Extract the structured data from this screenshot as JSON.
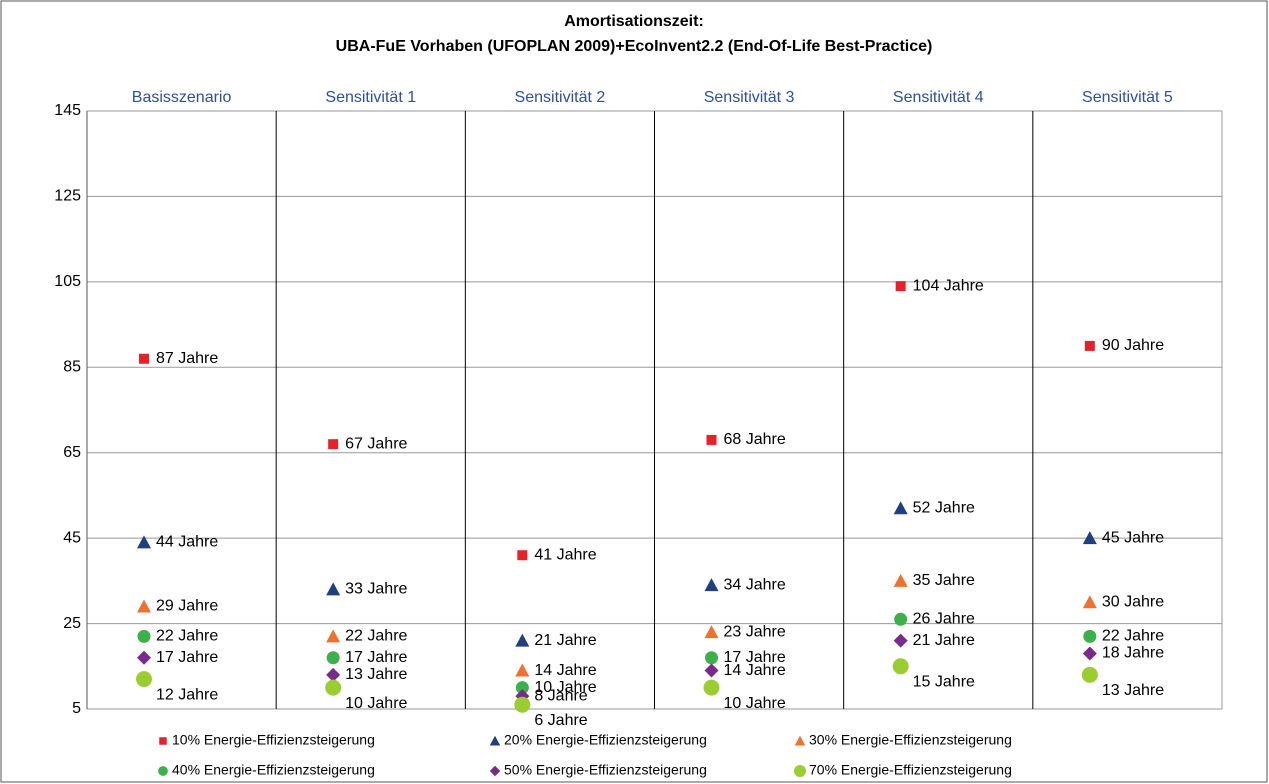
{
  "chart_data": {
    "type": "scatter",
    "title": "Amortisationszeit:",
    "subtitle": "UBA-FuE Vorhaben (UFOPLAN 2009)+EcoInvent2.2 (End-Of-Life Best-Practice)",
    "categories": [
      "Basisszenario",
      "Sensitivität 1",
      "Sensitivität 2",
      "Sensitivität 3",
      "Sensitivität 4",
      "Sensitivität 5"
    ],
    "ylim": [
      5,
      145
    ],
    "yticks": [
      5,
      25,
      45,
      65,
      85,
      105,
      125,
      145
    ],
    "grid": true,
    "series": [
      {
        "name": "10% Energie-Effizienzsteigerung",
        "color": "#e8202a",
        "marker": "square",
        "values": [
          87,
          67,
          41,
          68,
          104,
          90
        ],
        "value_labels": [
          "87 Jahre",
          "67 Jahre",
          "41 Jahre",
          "68 Jahre",
          "104 Jahre",
          "90 Jahre"
        ]
      },
      {
        "name": "20% Energie-Effizienzsteigerung",
        "color": "#1f3f80",
        "marker": "triangle",
        "values": [
          44,
          33,
          21,
          34,
          52,
          45
        ],
        "value_labels": [
          "44 Jahre",
          "33 Jahre",
          "21 Jahre",
          "34 Jahre",
          "52 Jahre",
          "45 Jahre"
        ]
      },
      {
        "name": "30% Energie-Effizienzsteigerung",
        "color": "#f07030",
        "marker": "triangle",
        "values": [
          29,
          22,
          14,
          23,
          35,
          30
        ],
        "value_labels": [
          "29 Jahre",
          "22 Jahre",
          "14 Jahre",
          "23 Jahre",
          "35 Jahre",
          "30 Jahre"
        ]
      },
      {
        "name": "40% Energie-Effizienzsteigerung",
        "color": "#3cb04a",
        "marker": "circle",
        "values": [
          22,
          17,
          10,
          17,
          26,
          22
        ],
        "value_labels": [
          "22 Jahre",
          "17 Jahre",
          "10 Jahre",
          "17 Jahre",
          "26 Jahre",
          "22 Jahre"
        ]
      },
      {
        "name": "50% Energie-Effizienzsteigerung",
        "color": "#7a2a8a",
        "marker": "diamond",
        "values": [
          17,
          13,
          8,
          14,
          21,
          18
        ],
        "value_labels": [
          "17 Jahre",
          "13 Jahre",
          "8 Jahre",
          "14 Jahre",
          "21 Jahre",
          "18 Jahre"
        ]
      },
      {
        "name": "70% Energie-Effizienzsteigerung",
        "color": "#9acd32",
        "marker": "bigcircle",
        "values": [
          12,
          10,
          6,
          10,
          15,
          13
        ],
        "value_labels": [
          "12 Jahre",
          "10 Jahre",
          "6 Jahre",
          "10 Jahre",
          "15 Jahre",
          "13 Jahre"
        ]
      }
    ]
  }
}
